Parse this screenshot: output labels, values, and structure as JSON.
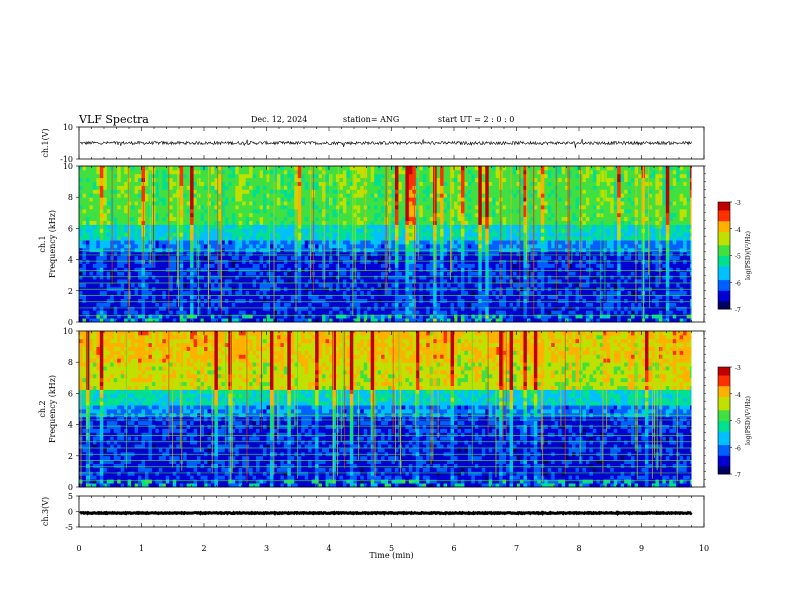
{
  "header": {
    "title": "VLF Spectra",
    "date": "Dec. 12, 2024",
    "station": "station= ANG",
    "start": "start UT =  2 : 0  : 0"
  },
  "colors": {
    "colormap": [
      "#000060",
      "#0000d0",
      "#0060ff",
      "#00c0ff",
      "#00e090",
      "#40e040",
      "#c0e000",
      "#ffb000",
      "#ff3000",
      "#c00000",
      "#ffffff"
    ],
    "trace": "#000000"
  },
  "chart_data": [
    {
      "type": "line",
      "panel": "ch1-waveform",
      "ylabel": "ch.1(V)",
      "ylim": [
        -10,
        10
      ],
      "yticks": [
        "10",
        "-10"
      ],
      "series": [
        {
          "baseline": 0,
          "noise_amplitude": 1
        }
      ]
    },
    {
      "type": "heatmap",
      "panel": "ch1-spectrogram",
      "ylabel_channel": "ch.1",
      "ylabel": "Frequency (kHz)",
      "ylim": [
        0,
        10
      ],
      "yticks": [
        "0",
        "2",
        "4",
        "6",
        "8",
        "10"
      ],
      "x_range_min": [
        0,
        9.8
      ],
      "colorbar": {
        "label": "log(PSD)(V²/Hz)",
        "range": [
          -7,
          -3
        ],
        "ticks": [
          "-3",
          "-4",
          "-5",
          "-6",
          "-7"
        ]
      }
    },
    {
      "type": "heatmap",
      "panel": "ch2-spectrogram",
      "ylabel_channel": "ch.2",
      "ylabel": "Frequency (kHz)",
      "ylim": [
        0,
        10
      ],
      "yticks": [
        "0",
        "2",
        "4",
        "6",
        "8",
        "10"
      ],
      "x_range_min": [
        0,
        9.8
      ],
      "colorbar": {
        "label": "log(PSD)(V²/Hz)",
        "range": [
          -7,
          -3
        ],
        "ticks": [
          "-3",
          "-4",
          "-5",
          "-6",
          "-7"
        ]
      }
    },
    {
      "type": "line",
      "panel": "ch3-waveform",
      "ylabel": "ch.3(V)",
      "ylim": [
        -5,
        5
      ],
      "yticks": [
        "5",
        "0",
        "-5"
      ],
      "series": [
        {
          "baseline": -0.5,
          "noise_amplitude": 0.15
        }
      ]
    }
  ],
  "xaxis": {
    "label": "Time (min)",
    "ticks": [
      "0",
      "1",
      "2",
      "3",
      "4",
      "5",
      "6",
      "7",
      "8",
      "9",
      "10"
    ],
    "range": [
      0,
      10
    ]
  }
}
